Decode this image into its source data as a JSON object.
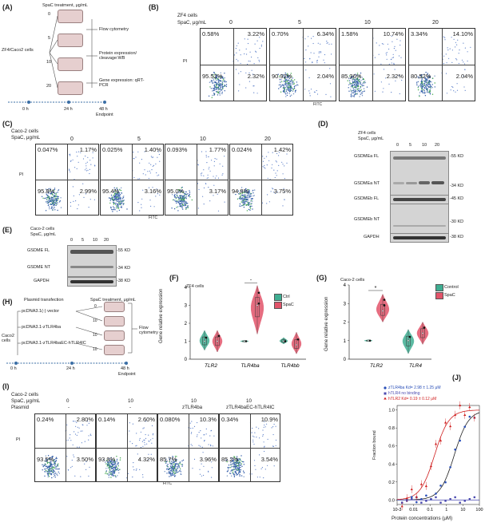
{
  "panels": {
    "A": "(A)",
    "B": "(B)",
    "C": "(C)",
    "D": "(D)",
    "E": "(E)",
    "F": "(F)",
    "G": "(G)",
    "H": "(H)",
    "I": "(I)",
    "J": "(J)"
  },
  "panel_a": {
    "header": "SpaC treatment, μg/mL",
    "side_label": "ZF4/Caco2 cells",
    "doses": [
      "0",
      "5",
      "10",
      "20"
    ],
    "outputs": [
      "Flow cytometry",
      "Protein expression/ cleavage:WB",
      "Gene expression: qRT-PCR"
    ],
    "times": [
      "0 h",
      "24 h",
      "48 h"
    ],
    "endpoint": "Endpoint"
  },
  "panel_b": {
    "cell_label": "ZF4 cells",
    "dose_label": "SpaC, μg/mL",
    "doses": [
      "0",
      "5",
      "10",
      "20"
    ],
    "quadrants": [
      {
        "ul": "0.58%",
        "ur": "3.22%",
        "ll": "95.52%",
        "lr": "2.32%"
      },
      {
        "ul": "0.70%",
        "ur": "6.34%",
        "ll": "90.92%",
        "lr": "2.04%"
      },
      {
        "ul": "1.58%",
        "ur": "10.74%",
        "ll": "85.36%",
        "lr": "2.32%"
      },
      {
        "ul": "3.34%",
        "ur": "14.10%",
        "ll": "80.52%",
        "lr": "2.04%"
      }
    ],
    "y_axis": "PI",
    "x_axis": "FITC"
  },
  "panel_c": {
    "cell_label": "Caco-2 cells",
    "dose_label": "SpaC, μg/mL",
    "doses": [
      "0",
      "5",
      "10",
      "20"
    ],
    "quadrants": [
      {
        "ul": "0.047%",
        "ur": "1.17%",
        "ll": "95.8%",
        "lr": "2.99%"
      },
      {
        "ul": "0.025%",
        "ur": "1.40%",
        "ll": "95.4%",
        "lr": "3.16%"
      },
      {
        "ul": "0.093%",
        "ur": "1.77%",
        "ll": "95.0%",
        "lr": "3.17%"
      },
      {
        "ul": "0.024%",
        "ur": "1.42%",
        "ll": "94.8%",
        "lr": "3.75%"
      }
    ],
    "y_axis": "PI",
    "x_axis": "FITC"
  },
  "panel_d": {
    "cell_label": "ZF4 cells",
    "dose_label": "SpaC, μg/mL",
    "doses": [
      "0",
      "5",
      "10",
      "20"
    ],
    "rows": [
      "GSDMEa FL",
      "GSDMEa NT",
      "GSDMEb FL",
      "GSDMEb NT",
      "GAPDH"
    ],
    "markers": [
      "-55 KD",
      "-34 KD",
      "-45 KD",
      "-30 KD",
      "-38 KD"
    ]
  },
  "panel_e": {
    "cell_label": "Caco-2 cells",
    "dose_label": "SpaC, μg/mL",
    "doses": [
      "0",
      "5",
      "10",
      "20"
    ],
    "rows": [
      "GSDME FL",
      "GSDME NT",
      "GAPDH"
    ],
    "markers": [
      "-55 KD",
      "-34 KD",
      "-38 KD"
    ]
  },
  "panel_f": {
    "cell_label": "ZF4 cells",
    "ylabel": "Gene relative expression",
    "yticks": [
      "0",
      "1",
      "2",
      "3",
      "4"
    ],
    "genes": [
      "TLR2",
      "TLR4ba",
      "TLR4bb"
    ],
    "legend": [
      "Ctrl",
      "SpaC"
    ],
    "sig": "*"
  },
  "panel_g": {
    "cell_label": "Caco-2 cells",
    "ylabel": "Gene relative expression",
    "yticks": [
      "0",
      "1",
      "2",
      "3",
      "4"
    ],
    "genes": [
      "TLR2",
      "TLR4"
    ],
    "legend": [
      "Control",
      "SpaC"
    ],
    "sig": "*"
  },
  "panel_h": {
    "header_left": "Plasmid transfection",
    "header_right": "SpaC treatment, μg/mL",
    "side_label": "Caco2 cells",
    "plasmids": [
      "pcDNA3.1(-) vector",
      "pcDNA3.1-zTLR4ba",
      "pcDNA3.1-zTLR4baEC-hTLR4IC"
    ],
    "doses": [
      "0",
      "10",
      "10",
      "10"
    ],
    "output": "Flow cytometry",
    "times": [
      "0 h",
      "24 h",
      "48 h"
    ],
    "endpoint": "Endpoint"
  },
  "panel_i": {
    "cell_label": "Caco-2 cells",
    "dose_label": "SpaC, μg/mL",
    "plasmid_label": "Plasmid",
    "doses": [
      "0",
      "10",
      "10",
      "10"
    ],
    "plasmids": [
      "-",
      "-",
      "zTLR4ba",
      "zTLR4baEC-hTLR4IC"
    ],
    "quadrants": [
      {
        "ul": "0.24%",
        "ur": "2.80%",
        "ll": "93.5%",
        "lr": "3.50%"
      },
      {
        "ul": "0.14%",
        "ur": "2.60%",
        "ll": "93.9%",
        "lr": "4.32%"
      },
      {
        "ul": "0.080%",
        "ur": "10.3%",
        "ll": "85.7%",
        "lr": "3.96%"
      },
      {
        "ul": "0.34%",
        "ur": "10.9%",
        "ll": "85.2%",
        "lr": "3.54%"
      }
    ],
    "y_axis": "PI",
    "x_axis": "FITC"
  },
  "panel_j": {
    "ylabel": "Fraction bound",
    "xlabel": "Protein concentrations (μM)",
    "yticks": [
      "0.0",
      "0.2",
      "0.4",
      "0.6",
      "0.8",
      "1.0"
    ],
    "xticks": [
      "10-3",
      "0.01",
      "0.1",
      "1",
      "10",
      "100"
    ],
    "legend": [
      {
        "name": "zTLR4ba  Kd= 2.98 ± 1.25 μM",
        "color": "#2a4fb8"
      },
      {
        "name": "hTLR4  no binding",
        "color": "#4b4bb0"
      },
      {
        "name": "hTLR2  Kd= 0.19 ± 0.12 μM",
        "color": "#d02020"
      }
    ]
  },
  "colors": {
    "ctrl": "#3fae92",
    "spac": "#e2546a",
    "dot": "#2f6b2f"
  }
}
